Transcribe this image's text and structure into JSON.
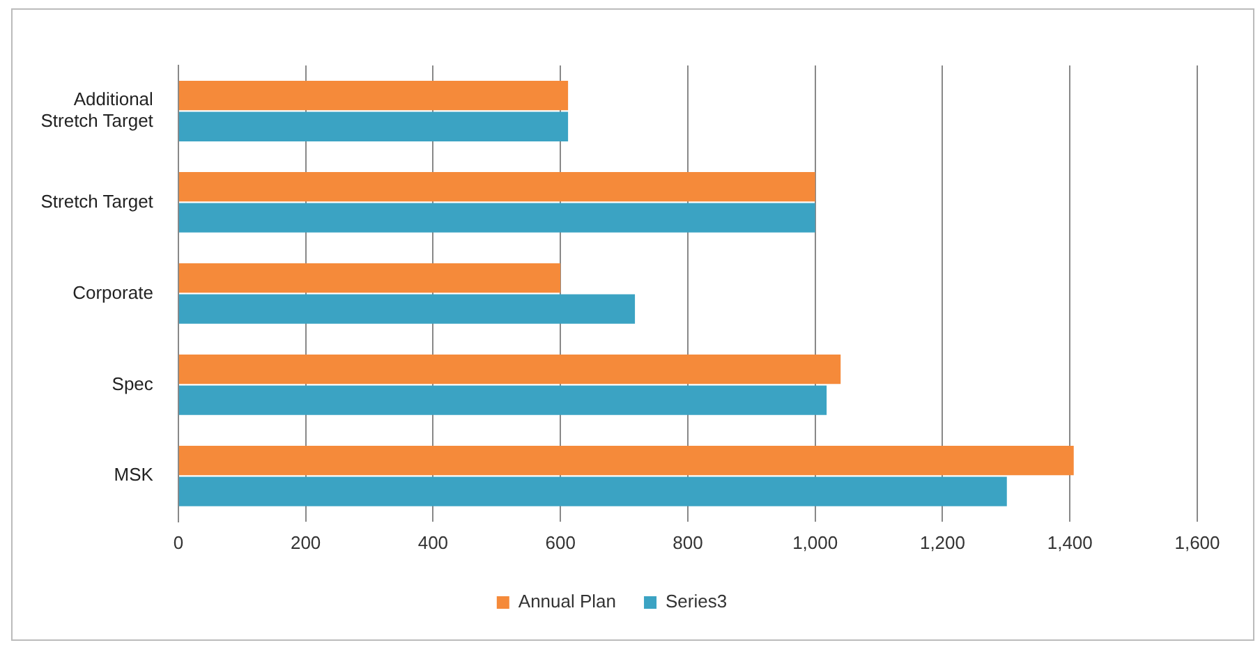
{
  "chart_data": {
    "type": "bar",
    "orientation": "horizontal",
    "categories": [
      "Additional Stretch Target",
      "Stretch Target",
      "Corporate",
      "Spec",
      "MSK"
    ],
    "series": [
      {
        "name": "Annual Plan",
        "color": "#f58a3a",
        "values": [
          612,
          1000,
          600,
          1040,
          1406
        ]
      },
      {
        "name": "Series3",
        "color": "#3ba3c3",
        "values": [
          612,
          1000,
          717,
          1018,
          1301
        ]
      }
    ],
    "xlim": [
      0,
      1600
    ],
    "xticks": [
      0,
      200,
      400,
      600,
      800,
      {
        "value": 1000,
        "label": "1,000"
      },
      {
        "value": 1200,
        "label": "1,200"
      },
      {
        "value": 1400,
        "label": "1,400"
      },
      {
        "value": 1600,
        "label": "1,600"
      }
    ],
    "grid": "x",
    "legend": "bottom"
  }
}
